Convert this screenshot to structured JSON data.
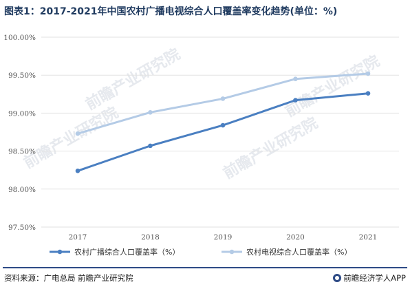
{
  "header": {
    "title": "图表1：2017-2021年中国农村广播电视综合人口覆盖率变化趋势(单位：%)"
  },
  "footer": {
    "source": "资料来源：广电总局 前瞻产业研究院",
    "brand": "前瞻经济学人APP"
  },
  "watermark": {
    "text": "前瞻产业研究院"
  },
  "chart_data": {
    "type": "line",
    "categories": [
      "2017",
      "2018",
      "2019",
      "2020",
      "2021"
    ],
    "ylim": [
      97.5,
      100.0
    ],
    "yticks": [
      97.5,
      98.0,
      98.5,
      99.0,
      99.5,
      100.0
    ],
    "ytick_labels": [
      "97.50%",
      "98.00%",
      "98.50%",
      "99.00%",
      "99.50%",
      "100.00%"
    ],
    "grid": true,
    "legend_position": "bottom",
    "series": [
      {
        "name": "农村广播综合人口覆盖率（%）",
        "values": [
          98.24,
          98.57,
          98.84,
          99.17,
          99.26
        ],
        "color": "#4a7fc1"
      },
      {
        "name": "农村电视综合人口覆盖率（%）",
        "values": [
          98.73,
          99.01,
          99.19,
          99.45,
          99.52
        ],
        "color": "#b4cbe6"
      }
    ]
  }
}
